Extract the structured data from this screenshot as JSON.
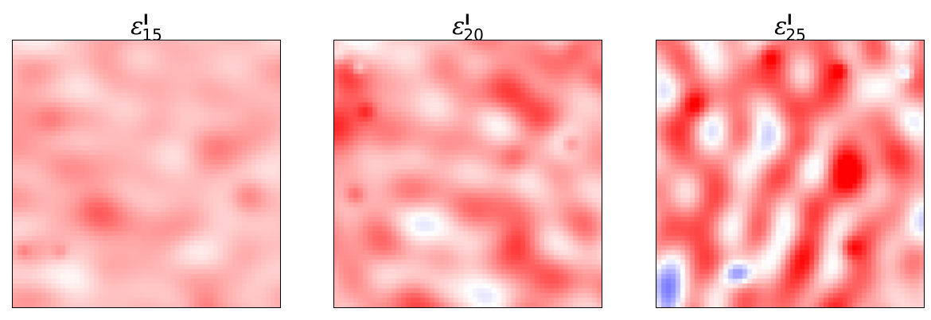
{
  "panels": [
    {
      "symbol": "ε",
      "superscript": "l",
      "subscript": "15",
      "intensity": 0.45,
      "blue_fraction": 0.04,
      "seed": 15
    },
    {
      "symbol": "ε",
      "superscript": "l",
      "subscript": "20",
      "intensity": 0.75,
      "blue_fraction": 0.12,
      "seed": 20
    },
    {
      "symbol": "ε",
      "superscript": "l",
      "subscript": "25",
      "intensity": 1.0,
      "blue_fraction": 0.22,
      "seed": 25
    }
  ],
  "colors": {
    "positive": "#ff0000",
    "neutral": "#ffffff",
    "negative": "#0000ff"
  }
}
